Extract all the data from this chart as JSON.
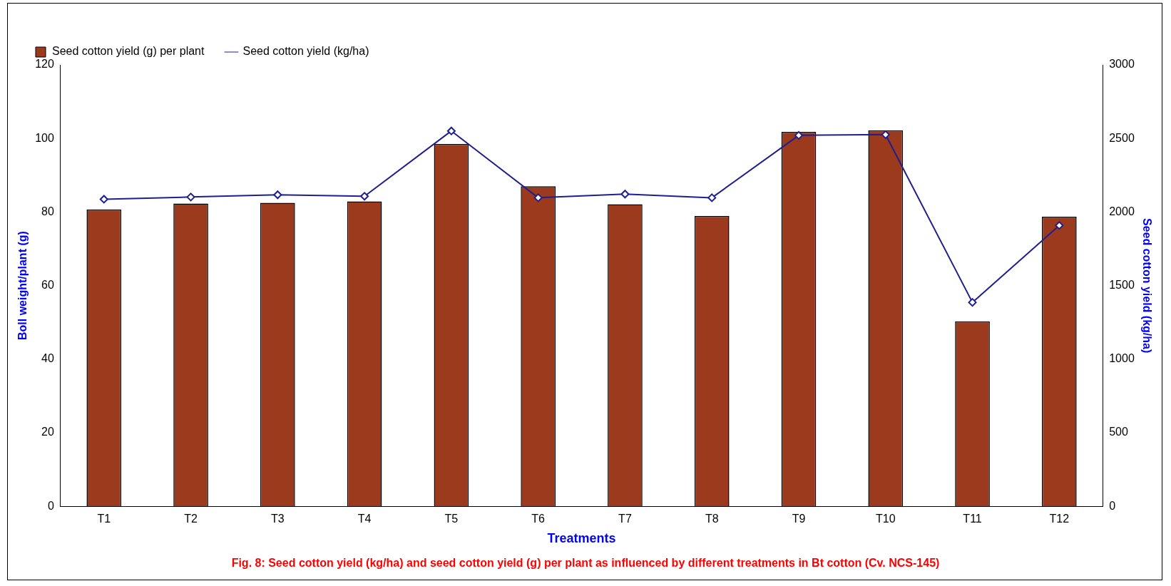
{
  "chart_data": {
    "type": "bar",
    "title": "Fig. 8: Seed cotton yield (kg/ha)  and seed cotton yield (g) per plant as influenced by different treatments in Bt cotton (Cv. NCS-145)",
    "xlabel": "Treatments",
    "ylabel": "Boll weight/plant (g)",
    "y2label": "Seed cotton yield (kg/ha)",
    "categories": [
      "T1",
      "T2",
      "T3",
      "T4",
      "T5",
      "T6",
      "T7",
      "T8",
      "T9",
      "T10",
      "T11",
      "T12"
    ],
    "series": [
      {
        "name": "Seed cotton yield (g) per plant",
        "color": "#9c3a1e",
        "values": [
          80.7,
          82.3,
          82.5,
          82.9,
          98.5,
          87.0,
          82.1,
          78.9,
          101.8,
          102.2,
          50.3,
          78.7
        ]
      },
      {
        "name": "Seed cotton yield (kg/ha)",
        "type": "line",
        "axis": "y2",
        "color": "#1f1f8f",
        "values": [
          2087,
          2102,
          2117,
          2107,
          2551,
          2097,
          2122,
          2097,
          2521,
          2526,
          1386,
          1909
        ]
      }
    ],
    "ylim": [
      0,
      120
    ],
    "yticks": [
      0,
      20,
      40,
      60,
      80,
      100,
      120
    ],
    "y2lim": [
      0,
      3000
    ],
    "y2ticks": [
      0,
      500,
      1000,
      1500,
      2000,
      2500,
      3000
    ],
    "grid": false,
    "legend": "top left",
    "marker": "diamond",
    "line_style": "solid"
  }
}
